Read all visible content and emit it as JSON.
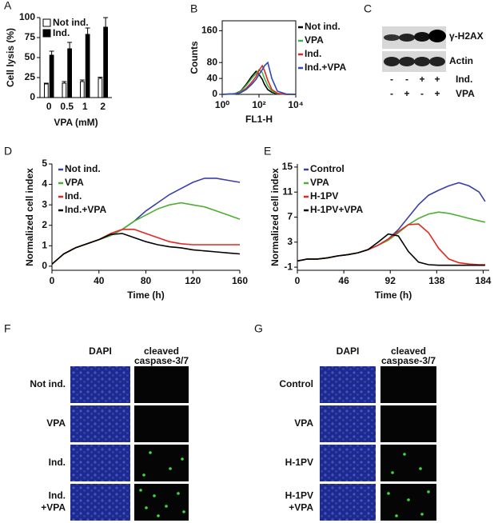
{
  "chart_data": [
    {
      "type": "bar",
      "label": "A",
      "ylabel": "Cell lysis (%)",
      "xlabel": "VPA (mM)",
      "categories": [
        "0",
        "0.5",
        "1",
        "2"
      ],
      "series": [
        {
          "name": "Not ind.",
          "color": "#ffffff",
          "values": [
            17,
            18,
            20,
            24
          ],
          "errors": [
            1,
            2,
            2,
            1.5
          ]
        },
        {
          "name": "Ind.",
          "color": "#000000",
          "values": [
            53,
            61,
            79,
            88
          ],
          "errors": [
            5,
            8,
            8,
            12
          ]
        }
      ],
      "ylim": [
        0,
        100
      ],
      "yticks": [
        0,
        25,
        50,
        75,
        100
      ],
      "legend": "upper left"
    },
    {
      "type": "line",
      "label": "B",
      "ylabel": "Counts",
      "xlabel": "FL1-H",
      "xlog": true,
      "frame": true,
      "x": [
        1,
        5,
        10,
        20,
        40,
        70,
        100,
        150,
        200,
        300,
        500,
        1000,
        3000,
        10000
      ],
      "series": [
        {
          "name": "Not ind.",
          "color": "#000000",
          "values": [
            0,
            2,
            8,
            25,
            45,
            58,
            50,
            38,
            25,
            12,
            5,
            1,
            0,
            0
          ]
        },
        {
          "name": "VPA",
          "color": "#3cb44b",
          "values": [
            0,
            2,
            7,
            22,
            40,
            52,
            62,
            55,
            40,
            22,
            8,
            2,
            0,
            0
          ]
        },
        {
          "name": "Ind.",
          "color": "#e6261f",
          "values": [
            0,
            1,
            5,
            15,
            30,
            45,
            60,
            72,
            60,
            35,
            12,
            3,
            0,
            0
          ]
        },
        {
          "name": "Ind.+VPA",
          "color": "#2b4bb8",
          "values": [
            0,
            1,
            4,
            12,
            25,
            38,
            50,
            62,
            72,
            80,
            40,
            8,
            1,
            0
          ]
        }
      ],
      "xlim": [
        1,
        10000
      ],
      "xticks": [
        {
          "value": 1,
          "label": "10⁰"
        },
        {
          "value": 100,
          "label": "10²"
        },
        {
          "value": 10000,
          "label": "10⁴"
        }
      ],
      "ylim": [
        0,
        185
      ],
      "yticks": [
        0,
        40,
        80,
        160
      ],
      "legend": "right"
    },
    {
      "type": "line",
      "label": "D",
      "ylabel": "Normalized cell index",
      "xlabel": "Time (h)",
      "x": [
        0,
        10,
        20,
        30,
        40,
        50,
        60,
        70,
        80,
        90,
        100,
        110,
        120,
        130,
        140,
        150,
        160
      ],
      "series": [
        {
          "name": "Not ind.",
          "color": "#3a3fa8",
          "values": [
            0.1,
            0.6,
            0.9,
            1.1,
            1.3,
            1.5,
            1.8,
            2.2,
            2.7,
            3.1,
            3.5,
            3.8,
            4.1,
            4.3,
            4.3,
            4.2,
            4.1
          ]
        },
        {
          "name": "VPA",
          "color": "#4caf32",
          "values": [
            0.1,
            0.6,
            0.9,
            1.1,
            1.3,
            1.5,
            1.8,
            2.2,
            2.5,
            2.8,
            3.0,
            3.1,
            3.0,
            2.9,
            2.7,
            2.5,
            2.3
          ]
        },
        {
          "name": "Ind.",
          "color": "#e6261f",
          "values": [
            0.1,
            0.6,
            0.9,
            1.1,
            1.3,
            1.6,
            1.8,
            1.8,
            1.6,
            1.4,
            1.2,
            1.1,
            1.05,
            1.05,
            1.05,
            1.05,
            1.05
          ]
        },
        {
          "name": "Ind.+VPA",
          "color": "#000000",
          "values": [
            0.1,
            0.6,
            0.9,
            1.1,
            1.3,
            1.55,
            1.6,
            1.4,
            1.2,
            1.05,
            0.95,
            0.9,
            0.8,
            0.75,
            0.7,
            0.65,
            0.6
          ]
        }
      ],
      "xlim": [
        0,
        160
      ],
      "xticks": [
        0,
        40,
        80,
        120,
        160
      ],
      "ylim": [
        -0.2,
        5
      ],
      "yticks": [
        0,
        1,
        2,
        3,
        4,
        5
      ],
      "legend": "upper left"
    },
    {
      "type": "line",
      "label": "E",
      "ylabel": "Normalized cell index",
      "xlabel": "Time (h)",
      "x": [
        0,
        10,
        20,
        30,
        40,
        50,
        60,
        70,
        80,
        90,
        100,
        110,
        120,
        130,
        140,
        150,
        160,
        170,
        180,
        186
      ],
      "series": [
        {
          "name": "Control",
          "color": "#3a3fa8",
          "values": [
            0,
            0.3,
            0.3,
            0.5,
            0.8,
            1,
            1.3,
            1.8,
            2.5,
            3.5,
            5,
            7,
            9,
            10.5,
            11.3,
            12,
            12.5,
            12,
            11,
            9.5
          ]
        },
        {
          "name": "VPA",
          "color": "#4caf32",
          "values": [
            0,
            0.3,
            0.3,
            0.5,
            0.8,
            1,
            1.3,
            1.8,
            2.5,
            3.3,
            4.5,
            5.8,
            6.8,
            7.5,
            7.8,
            7.6,
            7.2,
            6.8,
            6.4,
            6.2
          ]
        },
        {
          "name": "H-1PV",
          "color": "#e6261f",
          "values": [
            0,
            0.3,
            0.3,
            0.5,
            0.8,
            1,
            1.3,
            1.8,
            2.5,
            3.5,
            4.7,
            5.8,
            5.9,
            4.5,
            2,
            0.3,
            -0.3,
            -0.5,
            -0.6,
            -0.6
          ]
        },
        {
          "name": "H-1PV+VPA",
          "color": "#000000",
          "values": [
            0,
            0.3,
            0.3,
            0.5,
            0.8,
            1,
            1.3,
            1.8,
            3,
            4.3,
            4,
            1.5,
            -0.2,
            -0.6,
            -0.7,
            -0.7,
            -0.7,
            -0.7,
            -0.7,
            -0.7
          ]
        }
      ],
      "xlim": [
        0,
        190
      ],
      "xticks": [
        0,
        46,
        92,
        138,
        184
      ],
      "ylim": [
        -1.5,
        15.5
      ],
      "yticks": [
        -1,
        3,
        7,
        11,
        15
      ],
      "legend": "upper left"
    }
  ],
  "western_blot": {
    "label": "C",
    "bands": [
      "γ-H2AX",
      "Actin"
    ],
    "conditions": [
      {
        "name": "Ind.",
        "signs": [
          "-",
          "-",
          "+",
          "+"
        ]
      },
      {
        "name": "VPA",
        "signs": [
          "-",
          "+",
          "-",
          "+"
        ]
      }
    ]
  },
  "microscopy": [
    {
      "label": "F",
      "columns": [
        [
          "DAPI"
        ],
        [
          "cleaved",
          "caspase-3/7"
        ]
      ],
      "rows": [
        [
          "Not ind."
        ],
        [
          "VPA"
        ],
        [
          "Ind."
        ],
        [
          "Ind.",
          "+VPA"
        ]
      ]
    },
    {
      "label": "G",
      "columns": [
        [
          "DAPI"
        ],
        [
          "cleaved",
          "caspase-3/7"
        ]
      ],
      "rows": [
        [
          "Control"
        ],
        [
          "VPA"
        ],
        [
          "H-1PV"
        ],
        [
          "H-1PV",
          "+VPA"
        ]
      ]
    }
  ]
}
